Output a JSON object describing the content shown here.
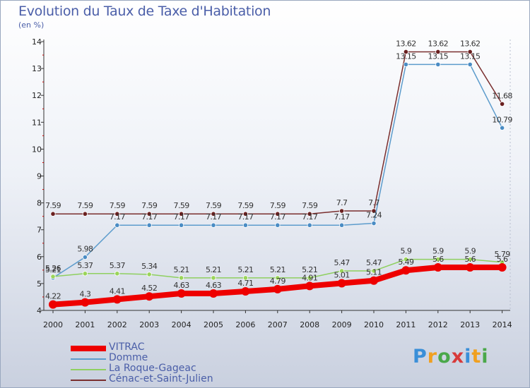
{
  "header": {
    "title": "Evolution du Taux de Taxe d'Habitation",
    "unit": "(en %)"
  },
  "brand": {
    "letters": [
      {
        "char": "P",
        "color": "#3a8fd8"
      },
      {
        "char": "r",
        "color": "#f0a020"
      },
      {
        "char": "o",
        "color": "#4aa84a"
      },
      {
        "char": "x",
        "color": "#d83a3a"
      },
      {
        "char": "i",
        "color": "#3a8fd8"
      },
      {
        "char": "t",
        "color": "#f0a020"
      },
      {
        "char": "i",
        "color": "#4aa84a"
      }
    ]
  },
  "chart_data": {
    "type": "line",
    "x": [
      "2000",
      "2001",
      "2002",
      "2003",
      "2004",
      "2005",
      "2006",
      "2007",
      "2008",
      "2009",
      "2010",
      "2011",
      "2012",
      "2013",
      "2014"
    ],
    "ylim": [
      4,
      14
    ],
    "yticks": [
      "4",
      "5",
      "6",
      "7",
      "8",
      "9",
      "10",
      "11",
      "12",
      "13",
      "14"
    ],
    "grid": false,
    "legend_position": "bottom-left",
    "series": [
      {
        "name": "VITRAC",
        "color": "#ee0000",
        "values": [
          4.22,
          4.3,
          4.41,
          4.52,
          4.63,
          4.63,
          4.71,
          4.79,
          4.91,
          5.01,
          5.11,
          5.49,
          5.6,
          5.6,
          5.6
        ],
        "labels": [
          "4.22",
          "4.3",
          "4.41",
          "4.52",
          "4.63",
          "4.63",
          "4.71",
          "4.79",
          "4.91",
          "5.01",
          "5.11",
          "5.49",
          "5.6",
          "5.6",
          "5.6"
        ]
      },
      {
        "name": "Domme",
        "color": "#5d9ccc",
        "values": [
          5.21,
          5.98,
          7.17,
          7.17,
          7.17,
          7.17,
          7.17,
          7.17,
          7.17,
          7.17,
          7.24,
          13.15,
          13.15,
          13.15,
          10.79
        ],
        "labels": [
          "5.21",
          "5.98",
          "7.17",
          "7.17",
          "7.17",
          "7.17",
          "7.17",
          "7.17",
          "7.17",
          "7.17",
          "7.24",
          "13.15",
          "13.15",
          "13.15",
          "10.79"
        ]
      },
      {
        "name": "La Roque-Gageac",
        "color": "#8fd060",
        "values": [
          5.26,
          5.37,
          5.37,
          5.34,
          5.21,
          5.21,
          5.21,
          5.21,
          5.21,
          5.47,
          5.47,
          5.9,
          5.9,
          5.9,
          5.79
        ],
        "labels": [
          "5.26",
          "5.37",
          "5.37",
          "5.34",
          "5.21",
          "5.21",
          "5.21",
          "5.21",
          "5.21",
          "5.47",
          "5.47",
          "5.9",
          "5.9",
          "5.9",
          "5.79"
        ]
      },
      {
        "name": "Cénac-et-Saint-Julien",
        "color": "#7a2e2e",
        "values": [
          7.59,
          7.59,
          7.59,
          7.59,
          7.59,
          7.59,
          7.59,
          7.59,
          7.59,
          7.7,
          7.7,
          13.62,
          13.62,
          13.62,
          11.68
        ],
        "labels": [
          "7.59",
          "7.59",
          "7.59",
          "7.59",
          "7.59",
          "7.59",
          "7.59",
          "7.59",
          "7.59",
          "7.7",
          "7.7",
          "13.62",
          "13.62",
          "13.62",
          "11.68"
        ]
      }
    ]
  }
}
